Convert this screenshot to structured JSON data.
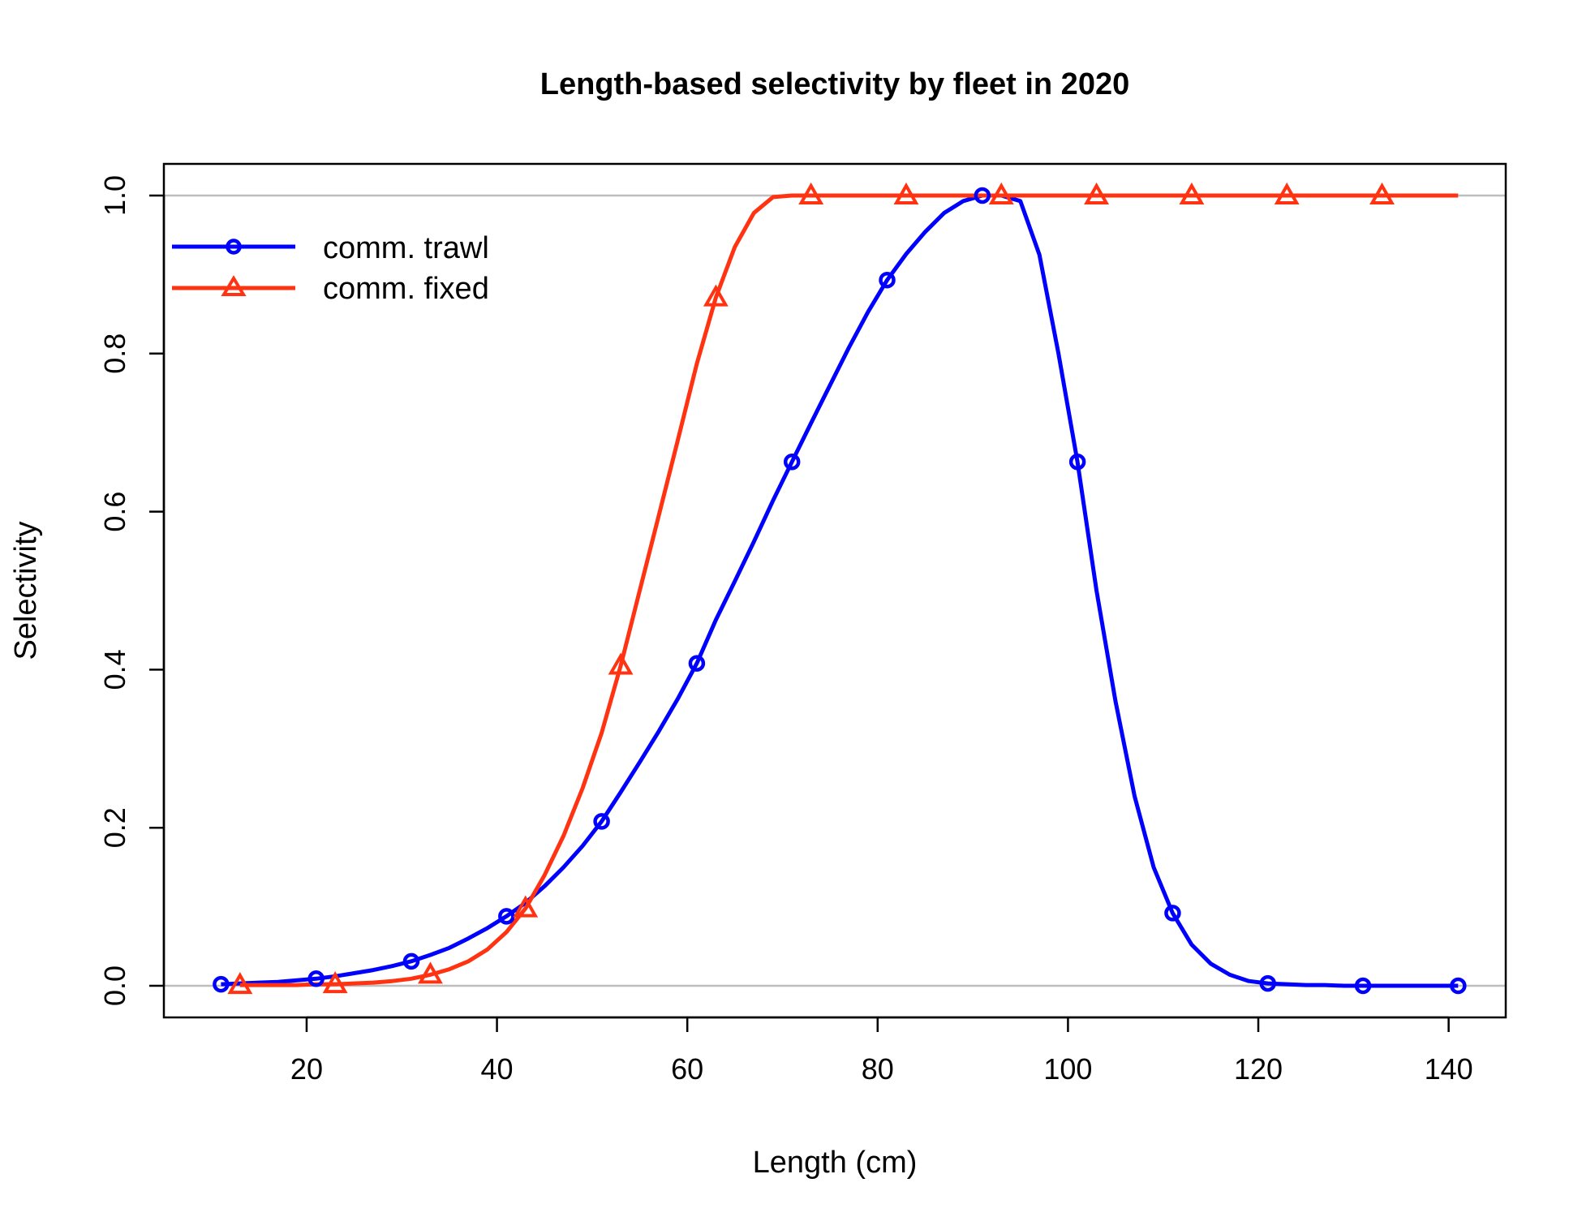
{
  "chart_data": {
    "type": "line",
    "title": "Length-based selectivity by fleet in 2020",
    "xlabel": "Length (cm)",
    "ylabel": "Selectivity",
    "xlim": [
      5,
      146
    ],
    "ylim": [
      -0.04,
      1.04
    ],
    "x_ticks": [
      20,
      40,
      60,
      80,
      100,
      120,
      140
    ],
    "y_ticks": [
      0.0,
      0.2,
      0.4,
      0.6,
      0.8,
      1.0
    ],
    "x_tick_labels": [
      "20",
      "40",
      "60",
      "80",
      "100",
      "120",
      "140"
    ],
    "y_tick_labels": [
      "0.0",
      "0.2",
      "0.4",
      "0.6",
      "0.8",
      "1.0"
    ],
    "reference_lines": [
      0,
      1
    ],
    "legend_position": "top-left",
    "series": [
      {
        "name": "comm. trawl",
        "color": "#0000ff",
        "marker": "circle",
        "x": [
          11,
          13,
          15,
          17,
          19,
          21,
          23,
          25,
          27,
          29,
          31,
          33,
          35,
          37,
          39,
          41,
          43,
          45,
          47,
          49,
          51,
          53,
          55,
          57,
          59,
          61,
          63,
          65,
          67,
          69,
          71,
          73,
          75,
          77,
          79,
          81,
          83,
          85,
          87,
          89,
          91,
          93,
          95,
          97,
          99,
          101,
          103,
          105,
          107,
          109,
          111,
          113,
          115,
          117,
          119,
          121,
          123,
          125,
          127,
          129,
          131,
          133,
          135,
          137,
          139,
          141
        ],
        "y": [
          0.002,
          0.003,
          0.004,
          0.005,
          0.007,
          0.009,
          0.012,
          0.016,
          0.02,
          0.025,
          0.031,
          0.039,
          0.048,
          0.06,
          0.073,
          0.088,
          0.105,
          0.126,
          0.15,
          0.177,
          0.208,
          0.245,
          0.283,
          0.322,
          0.363,
          0.408,
          0.463,
          0.512,
          0.562,
          0.614,
          0.663,
          0.712,
          0.76,
          0.808,
          0.853,
          0.893,
          0.926,
          0.954,
          0.978,
          0.993,
          1.0,
          1.0,
          0.993,
          0.925,
          0.8,
          0.663,
          0.5,
          0.36,
          0.24,
          0.15,
          0.092,
          0.052,
          0.028,
          0.014,
          0.006,
          0.003,
          0.002,
          0.001,
          0.001,
          0.0,
          0.0,
          0.0,
          0.0,
          0.0,
          0.0,
          0.0
        ],
        "marker_x": [
          11,
          21,
          31,
          41,
          51,
          61,
          71,
          81,
          91,
          101,
          111,
          121,
          131,
          141
        ],
        "marker_y": [
          0.002,
          0.009,
          0.031,
          0.088,
          0.208,
          0.408,
          0.663,
          0.893,
          1.0,
          0.663,
          0.092,
          0.003,
          0.0,
          0.0
        ]
      },
      {
        "name": "comm. fixed",
        "color": "#ff3311",
        "marker": "triangle",
        "x": [
          13,
          15,
          17,
          19,
          21,
          23,
          25,
          27,
          29,
          31,
          33,
          35,
          37,
          39,
          41,
          43,
          45,
          47,
          49,
          51,
          53,
          55,
          57,
          59,
          61,
          63,
          65,
          67,
          69,
          71,
          73,
          75,
          77,
          79,
          81,
          83,
          85,
          87,
          89,
          91,
          93,
          95,
          97,
          99,
          101,
          103,
          105,
          107,
          109,
          111,
          113,
          115,
          117,
          119,
          121,
          123,
          125,
          127,
          129,
          131,
          133,
          135,
          137,
          139,
          141
        ],
        "y": [
          0.001,
          0.001,
          0.001,
          0.001,
          0.002,
          0.002,
          0.003,
          0.004,
          0.006,
          0.009,
          0.014,
          0.021,
          0.031,
          0.046,
          0.068,
          0.098,
          0.14,
          0.19,
          0.25,
          0.32,
          0.405,
          0.5,
          0.595,
          0.69,
          0.787,
          0.871,
          0.935,
          0.978,
          0.998,
          1.0,
          1.0,
          1.0,
          1.0,
          1.0,
          1.0,
          1.0,
          1.0,
          1.0,
          1.0,
          1.0,
          1.0,
          1.0,
          1.0,
          1.0,
          1.0,
          1.0,
          1.0,
          1.0,
          1.0,
          1.0,
          1.0,
          1.0,
          1.0,
          1.0,
          1.0,
          1.0,
          1.0,
          1.0,
          1.0,
          1.0,
          1.0,
          1.0,
          1.0,
          1.0,
          1.0
        ],
        "marker_x": [
          13,
          23,
          33,
          43,
          53,
          63,
          73,
          83,
          93,
          103,
          113,
          123,
          133
        ],
        "marker_y": [
          0.001,
          0.002,
          0.014,
          0.098,
          0.405,
          0.871,
          1.0,
          1.0,
          1.0,
          1.0,
          1.0,
          1.0,
          1.0
        ]
      }
    ]
  }
}
